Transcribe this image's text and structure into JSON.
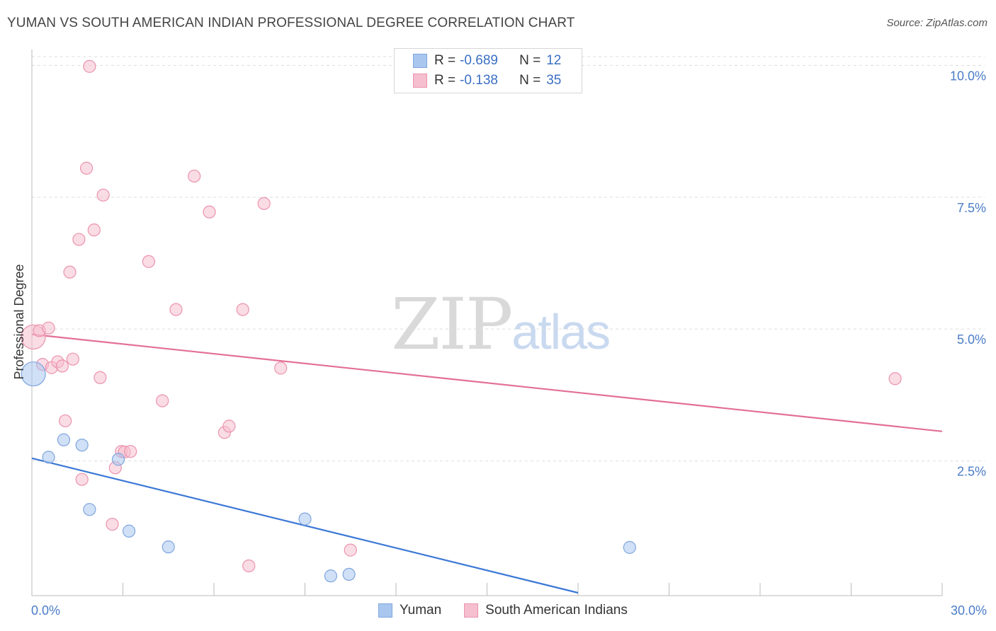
{
  "title": "YUMAN VS SOUTH AMERICAN INDIAN PROFESSIONAL DEGREE CORRELATION CHART",
  "source": "Source: ZipAtlas.com",
  "watermark": {
    "zip": "ZIP",
    "atlas": "atlas"
  },
  "legend": {
    "rows": [
      {
        "r_label": "R =",
        "r_value": "-0.689",
        "n_label": "N =",
        "n_value": "12",
        "color": "#a9c6ef",
        "border": "#7fa6de"
      },
      {
        "r_label": "R =",
        "r_value": "-0.138",
        "n_label": "N =",
        "n_value": "35",
        "color": "#f6bfd0",
        "border": "#eb93ae"
      }
    ]
  },
  "bottom_legend": [
    {
      "label": "Yuman",
      "color": "#a9c6ef",
      "border": "#7fa6de"
    },
    {
      "label": "South American Indians",
      "color": "#f6bfd0",
      "border": "#eb93ae"
    }
  ],
  "chart_data": {
    "type": "scatter",
    "title": "YUMAN VS SOUTH AMERICAN INDIAN PROFESSIONAL DEGREE CORRELATION CHART",
    "xlabel": "",
    "ylabel": "Professional Degree",
    "xlim": [
      0,
      30
    ],
    "ylim": [
      0,
      10.3
    ],
    "x_tick_labels": [
      "0.0%",
      "30.0%"
    ],
    "y_ticks": [
      2.5,
      5.0,
      7.5,
      10.0
    ],
    "y_tick_labels": [
      "2.5%",
      "5.0%",
      "7.5%",
      "10.0%"
    ],
    "grid": true,
    "series": [
      {
        "name": "Yuman",
        "color": "#a9c6ef",
        "edge": "#7fa6de",
        "line_color": "#3b78d6",
        "trend": {
          "x": [
            0,
            18.0
          ],
          "y": [
            2.55,
            0.0
          ]
        },
        "points": [
          {
            "x": 0.05,
            "y": 4.15,
            "big": true
          },
          {
            "x": 0.55,
            "y": 2.57
          },
          {
            "x": 1.05,
            "y": 2.9
          },
          {
            "x": 1.65,
            "y": 2.8
          },
          {
            "x": 1.9,
            "y": 1.58
          },
          {
            "x": 2.85,
            "y": 2.53
          },
          {
            "x": 3.2,
            "y": 1.17
          },
          {
            "x": 4.5,
            "y": 0.87
          },
          {
            "x": 9.0,
            "y": 1.4
          },
          {
            "x": 9.85,
            "y": 0.32
          },
          {
            "x": 10.45,
            "y": 0.35
          },
          {
            "x": 19.7,
            "y": 0.86
          }
        ]
      },
      {
        "name": "South American Indians",
        "color": "#f6bfd0",
        "edge": "#eb93ae",
        "line_color": "#e36f97",
        "trend": {
          "x": [
            0,
            30.0
          ],
          "y": [
            4.9,
            3.06
          ]
        },
        "points": [
          {
            "x": 0.05,
            "y": 4.85,
            "big": true
          },
          {
            "x": 0.25,
            "y": 4.97
          },
          {
            "x": 0.55,
            "y": 5.02
          },
          {
            "x": 0.35,
            "y": 4.33
          },
          {
            "x": 0.65,
            "y": 4.27
          },
          {
            "x": 0.85,
            "y": 4.38
          },
          {
            "x": 1.0,
            "y": 4.3
          },
          {
            "x": 1.35,
            "y": 4.43
          },
          {
            "x": 1.1,
            "y": 3.26
          },
          {
            "x": 1.25,
            "y": 6.08
          },
          {
            "x": 1.55,
            "y": 6.7
          },
          {
            "x": 1.65,
            "y": 2.15
          },
          {
            "x": 1.8,
            "y": 8.05
          },
          {
            "x": 1.9,
            "y": 9.98
          },
          {
            "x": 2.05,
            "y": 6.88
          },
          {
            "x": 2.25,
            "y": 4.08
          },
          {
            "x": 2.35,
            "y": 7.54
          },
          {
            "x": 2.65,
            "y": 1.3
          },
          {
            "x": 2.75,
            "y": 2.37
          },
          {
            "x": 2.95,
            "y": 2.68
          },
          {
            "x": 3.05,
            "y": 2.67
          },
          {
            "x": 3.25,
            "y": 2.68
          },
          {
            "x": 3.85,
            "y": 6.28
          },
          {
            "x": 4.3,
            "y": 3.64
          },
          {
            "x": 4.75,
            "y": 5.37
          },
          {
            "x": 5.35,
            "y": 7.9
          },
          {
            "x": 5.85,
            "y": 7.22
          },
          {
            "x": 6.35,
            "y": 3.04
          },
          {
            "x": 6.5,
            "y": 3.16
          },
          {
            "x": 6.95,
            "y": 5.37
          },
          {
            "x": 7.15,
            "y": 0.51
          },
          {
            "x": 7.65,
            "y": 7.38
          },
          {
            "x": 8.2,
            "y": 4.26
          },
          {
            "x": 10.5,
            "y": 0.81
          },
          {
            "x": 28.45,
            "y": 4.06
          }
        ]
      }
    ]
  }
}
